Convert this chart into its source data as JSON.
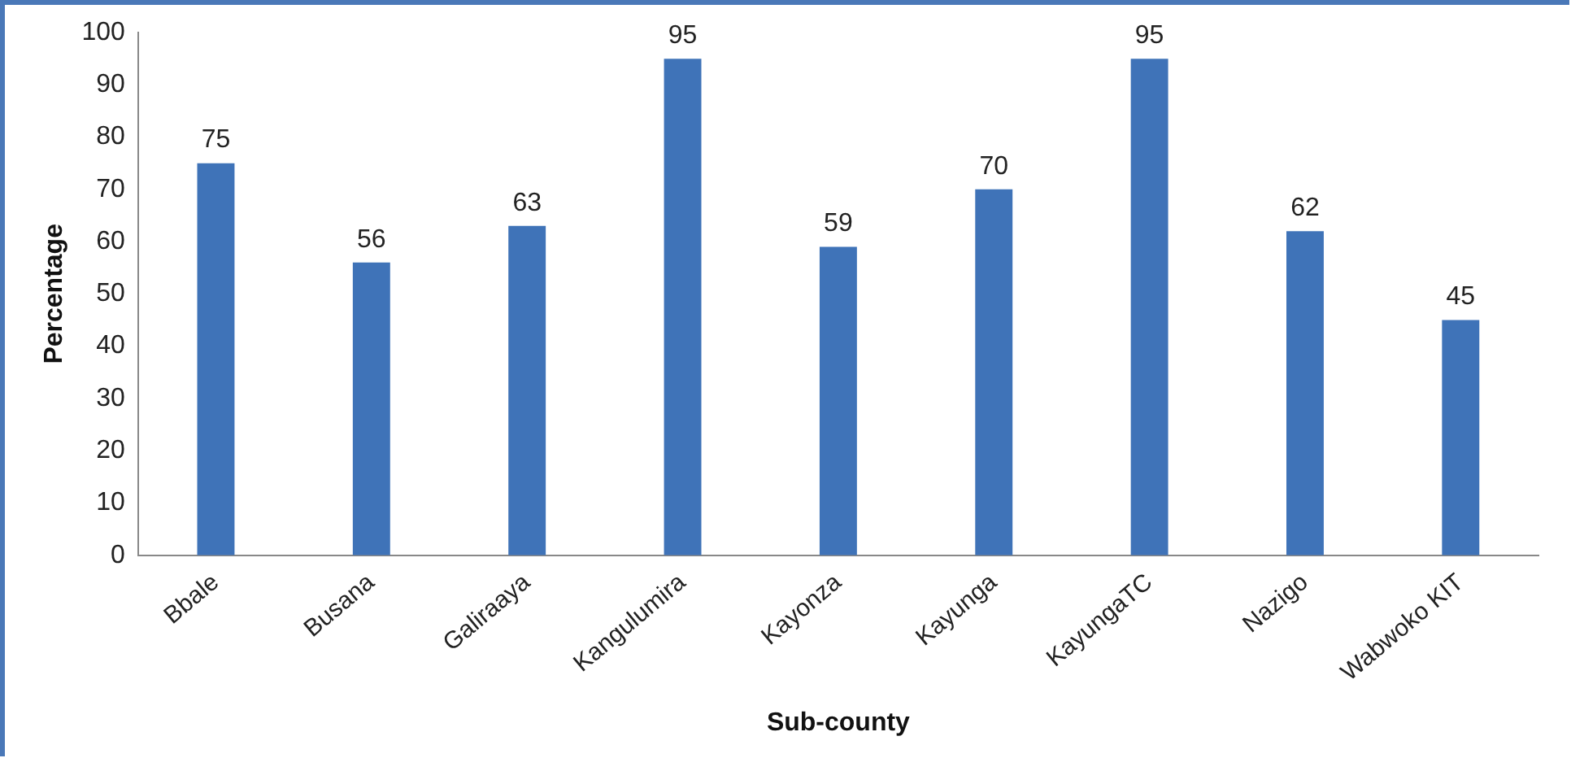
{
  "chart_data": {
    "type": "bar",
    "xlabel": "Sub-county",
    "ylabel": "Percentage",
    "categories": [
      "Bbale",
      "Busana",
      "Galiraaya",
      "Kangulumira",
      "Kayonza",
      "Kayunga",
      "KayungaTC",
      "Nazigo",
      "Wabwoko KIT"
    ],
    "values": [
      75,
      56,
      63,
      95,
      59,
      70,
      95,
      62,
      45
    ],
    "color": "#3f73b8",
    "ylim": [
      0,
      100
    ],
    "yticks": [
      0,
      10,
      20,
      30,
      40,
      50,
      60,
      70,
      80,
      90,
      100
    ],
    "grid": false,
    "legend": false,
    "data_labels": true
  }
}
